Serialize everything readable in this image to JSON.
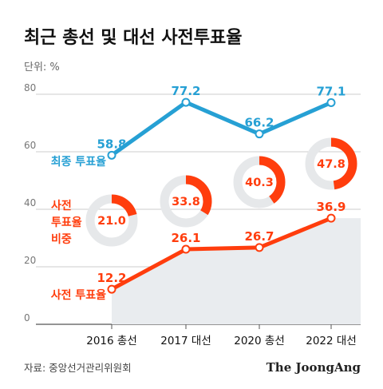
{
  "title": "최근 총선 및 대선 사전투표율",
  "unit_label": "단위: %",
  "source": "자료: 중앙선거관리위원회",
  "brand": "The JoongAng",
  "colors": {
    "final_turnout": "#26a0d4",
    "early_turnout": "#ff3d0d",
    "early_area": "#e9ecef",
    "donut_track": "#e6e8ea",
    "axis": "#bbbbbb"
  },
  "chart_data": {
    "type": "line",
    "categories": [
      "2016 총선",
      "2017 대선",
      "2020 총선",
      "2022 대선"
    ],
    "ylim": [
      0,
      80
    ],
    "yticks": [
      0,
      20,
      40,
      60,
      80
    ],
    "series": [
      {
        "name": "최종 투표율",
        "label_lines": [
          "최종 투표율"
        ],
        "values": [
          58.8,
          77.2,
          66.2,
          77.1
        ]
      },
      {
        "name": "사전 투표율",
        "label_lines": [
          "사전 투표율"
        ],
        "values": [
          12.2,
          26.1,
          26.7,
          36.9
        ]
      }
    ],
    "share": {
      "name": "사전 투표율 비중",
      "label_lines": [
        "사전",
        "투표율",
        "비중"
      ],
      "type": "donut",
      "values": [
        21.0,
        33.8,
        40.3,
        47.8
      ],
      "max": 100
    }
  }
}
